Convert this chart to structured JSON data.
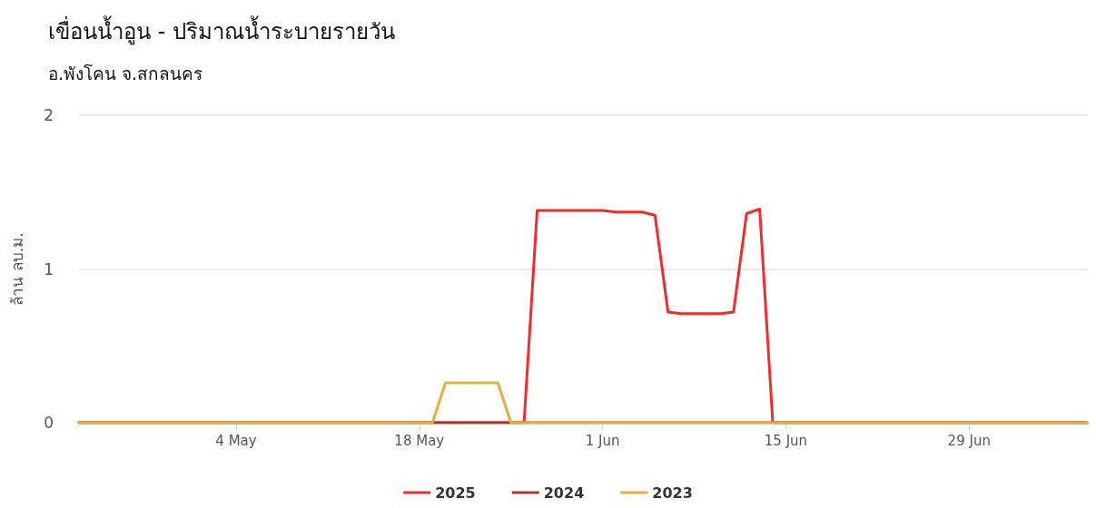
{
  "chart_data": {
    "type": "line",
    "title": "เขื่อนน้ำอูน - ปริมาณน้ำระบายรายวัน",
    "subtitle": "อ.พังโคน จ.สกลนคร",
    "ylabel": "ล้าน ลบ.ม.",
    "x": [
      "--04-22",
      "--04-23",
      "--04-24",
      "--04-25",
      "--04-26",
      "--04-27",
      "--04-28",
      "--04-29",
      "--04-30",
      "--05-01",
      "--05-02",
      "--05-03",
      "--05-04",
      "--05-05",
      "--05-06",
      "--05-07",
      "--05-08",
      "--05-09",
      "--05-10",
      "--05-11",
      "--05-12",
      "--05-13",
      "--05-14",
      "--05-15",
      "--05-16",
      "--05-17",
      "--05-18",
      "--05-19",
      "--05-20",
      "--05-21",
      "--05-22",
      "--05-23",
      "--05-24",
      "--05-25",
      "--05-26",
      "--05-27",
      "--05-28",
      "--05-29",
      "--05-30",
      "--05-31",
      "--06-01",
      "--06-02",
      "--06-03",
      "--06-04",
      "--06-05",
      "--06-06",
      "--06-07",
      "--06-08",
      "--06-09",
      "--06-10",
      "--06-11",
      "--06-12",
      "--06-13",
      "--06-14",
      "--06-15",
      "--06-16",
      "--06-17",
      "--06-18",
      "--06-19",
      "--06-20",
      "--06-21",
      "--06-22",
      "--06-23",
      "--06-24",
      "--06-25",
      "--06-26",
      "--06-27",
      "--06-28",
      "--06-29",
      "--06-30",
      "--07-01",
      "--07-02",
      "--07-03",
      "--07-04",
      "--07-05",
      "--07-06",
      "--07-07",
      "--07-08"
    ],
    "series": [
      {
        "name": "2025",
        "color": "#f22b2b",
        "values": [
          0,
          0,
          0,
          0,
          0,
          0,
          0,
          0,
          0,
          0,
          0,
          0,
          0,
          0,
          0,
          0,
          0,
          0,
          0,
          0,
          0,
          0,
          0,
          0,
          0,
          0,
          0,
          0,
          0,
          0,
          0,
          0,
          0,
          0,
          0,
          1.38,
          1.38,
          1.38,
          1.38,
          1.38,
          1.38,
          1.37,
          1.37,
          1.37,
          1.35,
          0.72,
          0.71,
          0.71,
          0.71,
          0.71,
          0.72,
          1.36,
          1.39,
          0,
          0,
          0,
          0,
          0,
          0,
          0,
          0,
          0,
          0,
          0,
          0,
          0,
          0,
          0,
          0,
          0,
          0,
          0,
          0,
          0,
          0,
          0,
          0,
          0
        ]
      },
      {
        "name": "2024",
        "color": "#a23b2e",
        "values": [
          0,
          0,
          0,
          0,
          0,
          0,
          0,
          0,
          0,
          0,
          0,
          0,
          0,
          0,
          0,
          0,
          0,
          0,
          0,
          0,
          0,
          0,
          0,
          0,
          0,
          0,
          0,
          0,
          0,
          0,
          0,
          0,
          0,
          0,
          0,
          0,
          0,
          0,
          0,
          0,
          0,
          0,
          0,
          0,
          0,
          0,
          0,
          0,
          0,
          0,
          0,
          0,
          0,
          0,
          0,
          0,
          0,
          0,
          0,
          0,
          0,
          0,
          0,
          0,
          0,
          0,
          0,
          0,
          0,
          0,
          0,
          0,
          0,
          0,
          0,
          0,
          0,
          0
        ]
      },
      {
        "name": "2023",
        "color": "#e0b040",
        "values": [
          0,
          0,
          0,
          0,
          0,
          0,
          0,
          0,
          0,
          0,
          0,
          0,
          0,
          0,
          0,
          0,
          0,
          0,
          0,
          0,
          0,
          0,
          0,
          0,
          0,
          0,
          0,
          0,
          0.26,
          0.26,
          0.26,
          0.26,
          0.26,
          0,
          0,
          0,
          0,
          0,
          0,
          0,
          0,
          0,
          0,
          0,
          0,
          0,
          0,
          0,
          0,
          0,
          0,
          0,
          0,
          0,
          0,
          0,
          0,
          0,
          0,
          0,
          0,
          0,
          0,
          0,
          0,
          0,
          0,
          0,
          0,
          0,
          0,
          0,
          0,
          0,
          0,
          0,
          0,
          0
        ]
      }
    ],
    "xlim": [
      "--04-22",
      "--07-08"
    ],
    "xticks": [
      {
        "value": "--05-04",
        "label": "4 May"
      },
      {
        "value": "--05-18",
        "label": "18 May"
      },
      {
        "value": "--06-01",
        "label": "1 Jun"
      },
      {
        "value": "--06-15",
        "label": "15 Jun"
      },
      {
        "value": "--06-29",
        "label": "29 Jun"
      }
    ],
    "ylim": [
      0,
      2
    ],
    "yticks": [
      0,
      1,
      2
    ],
    "grid": "y",
    "legend": "bottom",
    "marker": "none",
    "line_style": "solid"
  }
}
